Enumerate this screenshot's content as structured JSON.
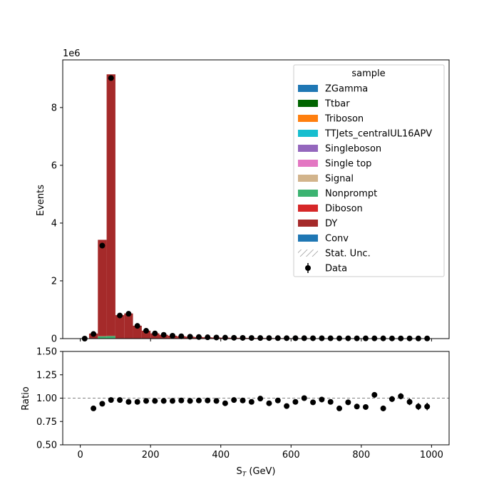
{
  "chart_data": [
    {
      "type": "bar",
      "stacked": true,
      "title": "",
      "xlabel": "S_T (GeV)",
      "ylabel": "Events",
      "y_scale_label": "1e6",
      "y_multiplier": 1000000,
      "xlim": [
        -50,
        1050
      ],
      "ylim": [
        0,
        9.65
      ],
      "xticks": [
        0,
        200,
        400,
        600,
        800,
        1000
      ],
      "yticks": [
        0,
        2,
        4,
        6,
        8
      ],
      "grid": false,
      "legend_title": "sample",
      "legend_position": "top-right",
      "bin_edges": [
        0,
        25,
        50,
        75,
        100,
        125,
        150,
        175,
        200,
        225,
        250,
        275,
        300,
        325,
        350,
        375,
        400,
        425,
        450,
        475,
        500,
        525,
        550,
        575,
        600,
        625,
        650,
        675,
        700,
        725,
        750,
        775,
        800,
        825,
        850,
        875,
        900,
        925,
        950,
        975,
        1000
      ],
      "series": [
        {
          "name": "ZGamma",
          "color": "#1f77b4",
          "values": [
            0,
            0,
            0,
            0,
            0,
            0,
            0,
            0,
            0,
            0,
            0,
            0,
            0,
            0,
            0,
            0,
            0,
            0,
            0,
            0,
            0,
            0,
            0,
            0,
            0,
            0,
            0,
            0,
            0,
            0,
            0,
            0,
            0,
            0,
            0,
            0,
            0,
            0,
            0,
            0
          ]
        },
        {
          "name": "Ttbar",
          "color": "#006400",
          "values": [
            0,
            0,
            0,
            0,
            0,
            0,
            0,
            0,
            0,
            0,
            0,
            0,
            0,
            0,
            0,
            0,
            0,
            0,
            0,
            0,
            0,
            0,
            0,
            0,
            0,
            0,
            0,
            0,
            0,
            0,
            0,
            0,
            0,
            0,
            0,
            0,
            0,
            0,
            0,
            0
          ]
        },
        {
          "name": "Triboson",
          "color": "#ff7f0e",
          "values": [
            0,
            0,
            0,
            0,
            0,
            0,
            0,
            0,
            0,
            0,
            0,
            0,
            0,
            0,
            0,
            0,
            0,
            0,
            0,
            0,
            0,
            0,
            0,
            0,
            0,
            0,
            0,
            0,
            0,
            0,
            0,
            0,
            0,
            0,
            0,
            0,
            0,
            0,
            0,
            0
          ]
        },
        {
          "name": "TTJets_centralUL16APV",
          "color": "#17becf",
          "values": [
            0,
            0,
            0,
            0,
            0,
            0,
            0,
            0,
            0,
            0,
            0,
            0,
            0,
            0,
            0,
            0,
            0,
            0,
            0,
            0,
            0,
            0,
            0,
            0,
            0,
            0,
            0,
            0,
            0,
            0,
            0,
            0,
            0,
            0,
            0,
            0,
            0,
            0,
            0,
            0
          ]
        },
        {
          "name": "Singleboson",
          "color": "#9467bd",
          "values": [
            0,
            0,
            0,
            0,
            0,
            0,
            0,
            0,
            0,
            0,
            0,
            0,
            0,
            0,
            0,
            0,
            0,
            0,
            0,
            0,
            0,
            0,
            0,
            0,
            0,
            0,
            0,
            0,
            0,
            0,
            0,
            0,
            0,
            0,
            0,
            0,
            0,
            0,
            0,
            0
          ]
        },
        {
          "name": "Single top",
          "color": "#e377c2",
          "values": [
            0,
            0,
            0,
            0,
            0,
            0,
            0,
            0,
            0,
            0,
            0,
            0,
            0,
            0,
            0,
            0,
            0,
            0,
            0,
            0,
            0,
            0,
            0,
            0,
            0,
            0,
            0,
            0,
            0,
            0,
            0,
            0,
            0,
            0,
            0,
            0,
            0,
            0,
            0,
            0
          ]
        },
        {
          "name": "Signal",
          "color": "#d2b48c",
          "values": [
            0,
            0,
            0,
            0,
            0,
            0,
            0,
            0,
            0,
            0,
            0,
            0,
            0,
            0,
            0,
            0,
            0,
            0,
            0,
            0,
            0,
            0,
            0,
            0,
            0,
            0,
            0,
            0,
            0,
            0,
            0,
            0,
            0,
            0,
            0,
            0,
            0,
            0,
            0,
            0
          ]
        },
        {
          "name": "Nonprompt",
          "color": "#3cb371",
          "values": [
            0,
            0.003,
            0.08,
            0.09,
            0.01,
            0.01,
            0.005,
            0.003,
            0.002,
            0.002,
            0.001,
            0.001,
            0,
            0,
            0,
            0,
            0,
            0,
            0,
            0,
            0,
            0,
            0,
            0,
            0,
            0,
            0,
            0,
            0,
            0,
            0,
            0,
            0,
            0,
            0,
            0,
            0,
            0,
            0,
            0
          ]
        },
        {
          "name": "Diboson",
          "color": "#d62728",
          "values": [
            0,
            0.002,
            0.01,
            0.01,
            0.003,
            0.002,
            0.001,
            0.001,
            0,
            0,
            0,
            0,
            0,
            0,
            0,
            0,
            0,
            0,
            0,
            0,
            0,
            0,
            0,
            0,
            0,
            0,
            0,
            0,
            0,
            0,
            0,
            0,
            0,
            0,
            0,
            0,
            0,
            0,
            0,
            0
          ]
        },
        {
          "name": "DY",
          "color": "#a52a2a",
          "values": [
            0,
            0.17,
            3.33,
            9.05,
            0.8,
            0.86,
            0.44,
            0.27,
            0.18,
            0.13,
            0.1,
            0.08,
            0.065,
            0.055,
            0.045,
            0.038,
            0.033,
            0.029,
            0.026,
            0.023,
            0.021,
            0.019,
            0.017,
            0.016,
            0.015,
            0.014,
            0.013,
            0.012,
            0.011,
            0.01,
            0.01,
            0.009,
            0.009,
            0.008,
            0.008,
            0.007,
            0.007,
            0.007,
            0.006,
            0.006
          ]
        },
        {
          "name": "Conv",
          "color": "#1f77b4",
          "values": [
            0,
            0,
            0,
            0,
            0,
            0,
            0,
            0,
            0,
            0,
            0,
            0,
            0,
            0,
            0,
            0,
            0,
            0,
            0,
            0,
            0,
            0,
            0,
            0,
            0,
            0,
            0,
            0,
            0,
            0,
            0,
            0,
            0,
            0,
            0,
            0,
            0,
            0,
            0,
            0
          ]
        }
      ],
      "extra_legend": [
        {
          "name": "Stat. Unc.",
          "kind": "hatch"
        },
        {
          "name": "Data",
          "kind": "errorbar"
        }
      ],
      "data": {
        "name": "Data",
        "x": [
          12.5,
          37.5,
          62.5,
          87.5,
          112.5,
          137.5,
          162.5,
          187.5,
          212.5,
          237.5,
          262.5,
          287.5,
          312.5,
          337.5,
          362.5,
          387.5,
          412.5,
          437.5,
          462.5,
          487.5,
          512.5,
          537.5,
          562.5,
          587.5,
          612.5,
          637.5,
          662.5,
          687.5,
          712.5,
          737.5,
          762.5,
          787.5,
          812.5,
          837.5,
          862.5,
          887.5,
          912.5,
          937.5,
          962.5,
          987.5
        ],
        "y": [
          0,
          0.16,
          3.22,
          9.02,
          0.8,
          0.86,
          0.44,
          0.27,
          0.18,
          0.13,
          0.1,
          0.08,
          0.065,
          0.055,
          0.045,
          0.038,
          0.033,
          0.029,
          0.026,
          0.023,
          0.021,
          0.019,
          0.017,
          0.016,
          0.015,
          0.014,
          0.013,
          0.012,
          0.011,
          0.01,
          0.01,
          0.009,
          0.009,
          0.008,
          0.008,
          0.007,
          0.007,
          0.007,
          0.006,
          0.006
        ]
      }
    },
    {
      "type": "scatter",
      "title": "",
      "xlabel": "S_T (GeV)",
      "ylabel": "Ratio",
      "xlim": [
        -50,
        1050
      ],
      "ylim": [
        0.5,
        1.5
      ],
      "xticks": [
        0,
        200,
        400,
        600,
        800,
        1000
      ],
      "yticks": [
        0.5,
        0.75,
        1.0,
        1.25,
        1.5
      ],
      "ytick_labels": [
        "0.50",
        "0.75",
        "1.00",
        "1.25",
        "1.50"
      ],
      "reference_line": 1.0,
      "grid": false,
      "x": [
        37.5,
        62.5,
        87.5,
        112.5,
        137.5,
        162.5,
        187.5,
        212.5,
        237.5,
        262.5,
        287.5,
        312.5,
        337.5,
        362.5,
        387.5,
        412.5,
        437.5,
        462.5,
        487.5,
        512.5,
        537.5,
        562.5,
        587.5,
        612.5,
        637.5,
        662.5,
        687.5,
        712.5,
        737.5,
        762.5,
        787.5,
        812.5,
        837.5,
        862.5,
        887.5,
        912.5,
        937.5,
        962.5,
        987.5
      ],
      "y": [
        0.89,
        0.94,
        0.98,
        0.98,
        0.96,
        0.96,
        0.97,
        0.97,
        0.97,
        0.97,
        0.975,
        0.97,
        0.975,
        0.975,
        0.97,
        0.945,
        0.98,
        0.975,
        0.96,
        0.995,
        0.945,
        0.975,
        0.915,
        0.96,
        1.0,
        0.955,
        0.985,
        0.96,
        0.89,
        0.955,
        0.91,
        0.905,
        1.035,
        0.89,
        0.99,
        1.02,
        0.96,
        0.91,
        0.91
      ],
      "yerr": [
        0.005,
        0.002,
        0.001,
        0.003,
        0.003,
        0.004,
        0.005,
        0.005,
        0.006,
        0.007,
        0.008,
        0.009,
        0.01,
        0.011,
        0.012,
        0.013,
        0.014,
        0.015,
        0.015,
        0.016,
        0.017,
        0.018,
        0.019,
        0.02,
        0.021,
        0.022,
        0.023,
        0.024,
        0.025,
        0.026,
        0.027,
        0.028,
        0.029,
        0.03,
        0.031,
        0.033,
        0.035,
        0.037,
        0.04
      ]
    }
  ]
}
